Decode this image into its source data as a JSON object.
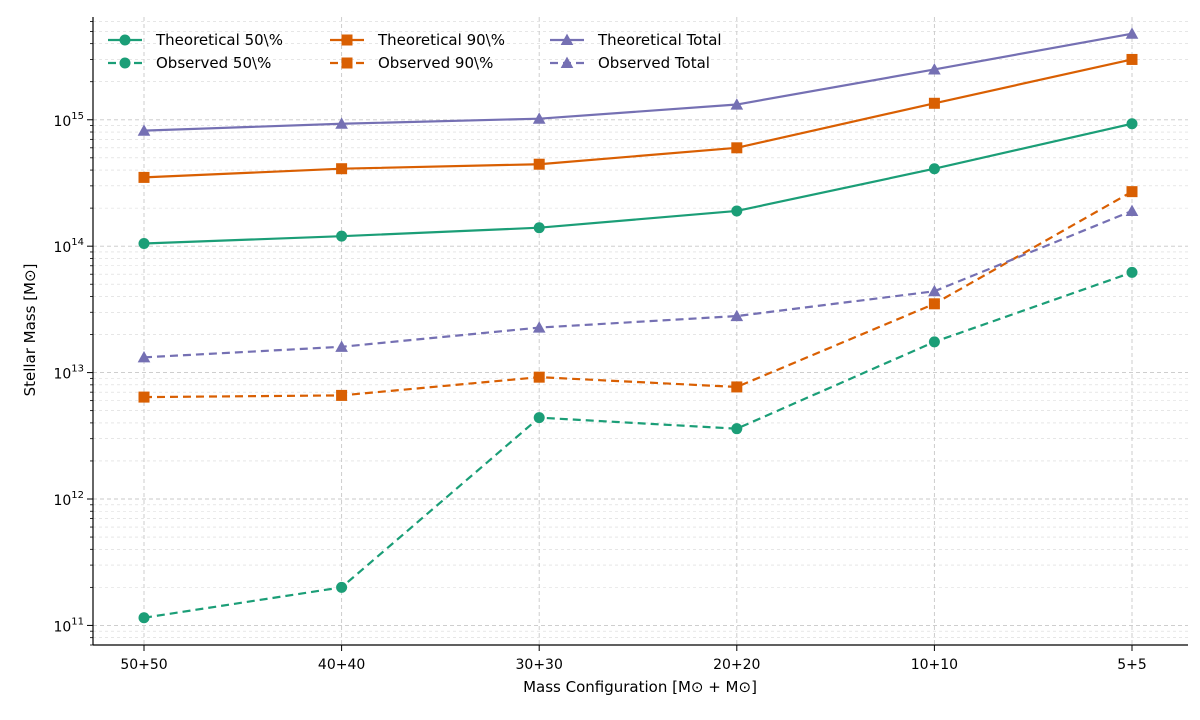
{
  "chart_data": {
    "type": "line",
    "title": "",
    "xlabel": "Mass Configuration [M⊙ + M⊙]",
    "ylabel": "Stellar Mass [M⊙]",
    "yscale": "log",
    "ylim": [
      70000000000.0,
      6500000000000000.0
    ],
    "categories": [
      "50+50",
      "40+40",
      "30+30",
      "20+20",
      "10+10",
      "5+5"
    ],
    "y_ticks": [
      {
        "value": 100000000000.0,
        "base": "10",
        "exp": "11"
      },
      {
        "value": 1000000000000.0,
        "base": "10",
        "exp": "12"
      },
      {
        "value": 10000000000000.0,
        "base": "10",
        "exp": "13"
      },
      {
        "value": 100000000000000.0,
        "base": "10",
        "exp": "14"
      },
      {
        "value": 1000000000000000.0,
        "base": "10",
        "exp": "15"
      }
    ],
    "grid": true,
    "legend_position": "top-left",
    "series": [
      {
        "name": "Theoretical 50\\%",
        "color": "#1b9e77",
        "marker": "circle",
        "dash": false,
        "values": [
          105000000000000.0,
          120000000000000.0,
          140000000000000.0,
          190000000000000.0,
          410000000000000.0,
          930000000000000.0
        ]
      },
      {
        "name": "Observed 50\\%",
        "color": "#1b9e77",
        "marker": "circle",
        "dash": true,
        "values": [
          115000000000.0,
          200000000000.0,
          4400000000000.0,
          3600000000000.0,
          17500000000000.0,
          62000000000000.0
        ]
      },
      {
        "name": "Theoretical 90\\%",
        "color": "#d95f02",
        "marker": "square",
        "dash": false,
        "values": [
          350000000000000.0,
          410000000000000.0,
          445000000000000.0,
          600000000000000.0,
          1350000000000000.0,
          3000000000000000.0
        ]
      },
      {
        "name": "Observed 90\\%",
        "color": "#d95f02",
        "marker": "square",
        "dash": true,
        "values": [
          6400000000000.0,
          6600000000000.0,
          9200000000000.0,
          7700000000000.0,
          35000000000000.0,
          270000000000000.0
        ]
      },
      {
        "name": "Theoretical Total",
        "color": "#7570b3",
        "marker": "triangle",
        "dash": false,
        "values": [
          820000000000000.0,
          930000000000000.0,
          1020000000000000.0,
          1320000000000000.0,
          2500000000000000.0,
          4800000000000000.0
        ]
      },
      {
        "name": "Observed Total",
        "color": "#7570b3",
        "marker": "triangle",
        "dash": true,
        "values": [
          13200000000000.0,
          16000000000000.0,
          22700000000000.0,
          28000000000000.0,
          44000000000000.0,
          190000000000000.0
        ]
      }
    ]
  }
}
